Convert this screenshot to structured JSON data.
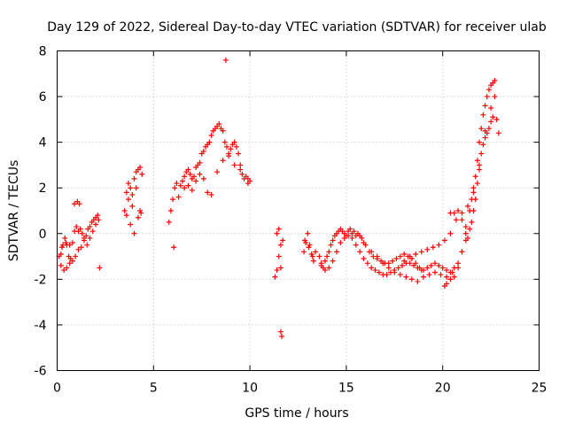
{
  "chart_data": {
    "type": "scatter",
    "title": "Day 129 of 2022, Sidereal Day-to-day VTEC variation (SDTVAR) for receiver ulab",
    "xlabel": "GPS time / hours",
    "ylabel": "SDTVAR / TECUs",
    "xlim": [
      0,
      25
    ],
    "ylim": [
      -6,
      8
    ],
    "xticks": [
      0,
      5,
      10,
      15,
      20,
      25
    ],
    "yticks": [
      -6,
      -4,
      -2,
      0,
      2,
      4,
      6,
      8
    ],
    "grid": true,
    "marker": "+",
    "marker_color": "#ff0000",
    "series": [
      {
        "name": "SDTVAR",
        "x": [
          0.1,
          0.2,
          0.3,
          0.4,
          0.5,
          0.6,
          0.7,
          0.8,
          0.9,
          1.0,
          1.1,
          1.2,
          1.3,
          1.4,
          1.5,
          1.6,
          1.7,
          1.8,
          1.9,
          2.0,
          2.1,
          0.2,
          0.35,
          0.5,
          0.65,
          0.8,
          0.95,
          1.1,
          1.25,
          1.4,
          1.55,
          1.7,
          1.85,
          2.0,
          2.15,
          0.25,
          0.45,
          0.65,
          0.9,
          1.05,
          1.15,
          2.2,
          3.5,
          3.6,
          3.7,
          3.8,
          3.9,
          4.0,
          4.1,
          4.2,
          4.3,
          4.4,
          3.6,
          3.8,
          4.0,
          4.2,
          4.35,
          3.7,
          3.9,
          4.1,
          4.3,
          5.8,
          5.9,
          6.0,
          6.1,
          6.2,
          6.05,
          6.3,
          6.4,
          6.5,
          6.6,
          6.7,
          6.8,
          6.9,
          7.0,
          7.1,
          7.2,
          7.3,
          7.4,
          7.5,
          7.6,
          7.7,
          7.8,
          7.9,
          8.0,
          8.1,
          8.2,
          8.3,
          8.4,
          8.5,
          8.6,
          8.7,
          8.8,
          8.9,
          9.0,
          9.1,
          9.2,
          9.3,
          9.4,
          9.5,
          9.6,
          9.7,
          9.8,
          9.9,
          10.0,
          6.6,
          6.8,
          7.0,
          7.2,
          7.4,
          7.6,
          7.8,
          8.0,
          8.3,
          8.6,
          8.9,
          9.2,
          9.5,
          9.9,
          8.75,
          11.3,
          11.4,
          11.5,
          11.6,
          11.7,
          11.4,
          11.5,
          11.6,
          11.6,
          11.65,
          12.8,
          12.9,
          13.0,
          13.1,
          13.2,
          13.3,
          13.4,
          12.85,
          13.05,
          13.25,
          13.6,
          13.7,
          13.8,
          13.9,
          14.0,
          14.1,
          14.2,
          14.3,
          14.4,
          14.5,
          14.6,
          14.7,
          14.8,
          14.9,
          15.0,
          15.1,
          15.2,
          15.3,
          15.4,
          15.5,
          15.6,
          15.7,
          15.8,
          15.9,
          16.0,
          16.2,
          16.4,
          16.6,
          16.8,
          17.0,
          17.2,
          17.4,
          17.6,
          17.8,
          18.0,
          18.2,
          18.4,
          18.6,
          18.8,
          19.0,
          19.2,
          19.4,
          19.6,
          19.8,
          20.0,
          20.2,
          20.4,
          20.6,
          20.8,
          21.0,
          21.2,
          13.7,
          13.9,
          14.1,
          14.3,
          14.5,
          14.7,
          14.9,
          15.1,
          15.3,
          15.5,
          15.7,
          15.9,
          16.1,
          16.3,
          16.5,
          16.7,
          16.9,
          17.1,
          17.3,
          17.5,
          17.7,
          17.9,
          18.1,
          18.3,
          18.5,
          18.7,
          18.9,
          16.3,
          16.6,
          16.9,
          17.2,
          17.5,
          17.8,
          18.1,
          18.4,
          18.7,
          19.0,
          19.3,
          19.6,
          19.9,
          20.2,
          20.5,
          18.0,
          18.3,
          18.6,
          18.9,
          19.2,
          19.5,
          19.8,
          20.1,
          20.4,
          20.7,
          21.0,
          21.3,
          21.6,
          21.9,
          22.2,
          22.5,
          22.7,
          22.8,
          22.9,
          20.1,
          20.2,
          20.4,
          20.6,
          20.8,
          21.0,
          21.2,
          21.4,
          21.5,
          21.6,
          21.7,
          21.8,
          21.9,
          22.0,
          22.1,
          22.2,
          22.3,
          22.4,
          22.5,
          22.6,
          22.7,
          20.4,
          20.6,
          20.8,
          21.0,
          21.2,
          21.3,
          21.4,
          21.5,
          21.6,
          21.7,
          21.8,
          21.9,
          22.0,
          22.1,
          22.2,
          22.3,
          22.4,
          22.5,
          22.6
        ],
        "y": [
          -1.0,
          -0.9,
          -0.5,
          -0.2,
          -0.5,
          -1.0,
          -1.1,
          -0.4,
          0.1,
          0.3,
          0.1,
          0.2,
          0.0,
          -0.2,
          -0.1,
          0.2,
          0.3,
          0.5,
          0.6,
          0.7,
          0.8,
          -1.4,
          -1.6,
          -1.5,
          -1.3,
          -1.2,
          -1.0,
          -0.7,
          -0.6,
          -0.3,
          -0.5,
          -0.2,
          0.1,
          0.4,
          0.6,
          -0.6,
          -0.4,
          -0.5,
          1.3,
          1.4,
          1.3,
          -1.5,
          1.0,
          1.8,
          2.2,
          2.0,
          1.2,
          2.4,
          2.7,
          2.8,
          2.9,
          2.6,
          0.8,
          0.4,
          0.0,
          0.7,
          0.9,
          1.5,
          1.7,
          2.0,
          1.0,
          0.5,
          1.0,
          1.5,
          2.0,
          2.2,
          -0.6,
          1.6,
          2.1,
          2.3,
          2.5,
          2.7,
          2.8,
          2.6,
          2.4,
          2.5,
          2.9,
          3.0,
          3.1,
          3.5,
          3.6,
          3.8,
          3.9,
          4.0,
          4.3,
          4.5,
          4.6,
          4.7,
          4.8,
          4.6,
          4.5,
          4.0,
          3.8,
          3.5,
          3.7,
          3.9,
          4.0,
          3.8,
          3.5,
          3.0,
          2.6,
          2.4,
          2.5,
          2.2,
          2.3,
          2.0,
          2.1,
          1.9,
          2.3,
          2.6,
          2.4,
          1.8,
          1.7,
          2.7,
          3.2,
          3.4,
          3.0,
          2.8,
          2.4,
          7.6,
          -1.9,
          -1.6,
          -1.0,
          -0.5,
          -0.3,
          0.0,
          0.2,
          -1.5,
          -4.3,
          -4.5,
          -0.8,
          -0.4,
          0.0,
          -0.5,
          -0.9,
          -1.2,
          -0.8,
          -0.3,
          -0.6,
          -1.0,
          -1.0,
          -1.3,
          -1.5,
          -1.2,
          -1.0,
          -0.8,
          -0.5,
          -0.3,
          -0.1,
          0.0,
          0.1,
          0.2,
          0.1,
          0.0,
          -0.1,
          0.1,
          0.2,
          0.0,
          0.1,
          -0.1,
          0.0,
          -0.1,
          -0.2,
          -0.4,
          -0.5,
          -0.8,
          -1.0,
          -1.1,
          -1.2,
          -1.3,
          -1.3,
          -1.2,
          -1.1,
          -1.0,
          -0.9,
          -1.0,
          -1.1,
          -1.3,
          -1.5,
          -1.6,
          -1.5,
          -1.4,
          -1.3,
          -1.4,
          -1.5,
          -1.6,
          -1.7,
          -1.5,
          -1.3,
          -0.8,
          -0.3,
          -1.4,
          -1.6,
          -1.5,
          -1.2,
          -0.8,
          -0.4,
          -0.2,
          -0.1,
          -0.2,
          -0.5,
          -0.8,
          -1.1,
          -1.3,
          -1.5,
          -1.6,
          -1.7,
          -1.8,
          -1.8,
          -1.7,
          -1.6,
          -1.5,
          -1.4,
          -1.3,
          -1.3,
          -1.4,
          -1.5,
          -1.6,
          -0.8,
          -1.0,
          -1.3,
          -1.5,
          -1.7,
          -1.8,
          -1.9,
          -2.0,
          -2.1,
          -1.9,
          -1.8,
          -1.7,
          -1.8,
          -1.9,
          -1.7,
          -1.2,
          -1.0,
          -0.9,
          -0.8,
          -0.7,
          -0.6,
          -0.5,
          -0.3,
          0.0,
          0.6,
          0.9,
          1.2,
          1.8,
          3.0,
          4.5,
          5.5,
          6.0,
          5.0,
          4.4,
          -2.3,
          -2.2,
          -2.0,
          -1.9,
          -1.5,
          -0.8,
          0.0,
          1.0,
          1.5,
          2.0,
          2.5,
          3.2,
          4.0,
          4.6,
          5.2,
          5.6,
          6.0,
          6.3,
          6.5,
          6.6,
          6.7,
          0.9,
          0.9,
          1.0,
          0.6,
          0.3,
          -0.2,
          0.2,
          0.5,
          1.0,
          1.5,
          2.2,
          2.8,
          3.5,
          3.9,
          4.2,
          4.4,
          4.6,
          4.9,
          5.1
        ]
      }
    ]
  }
}
